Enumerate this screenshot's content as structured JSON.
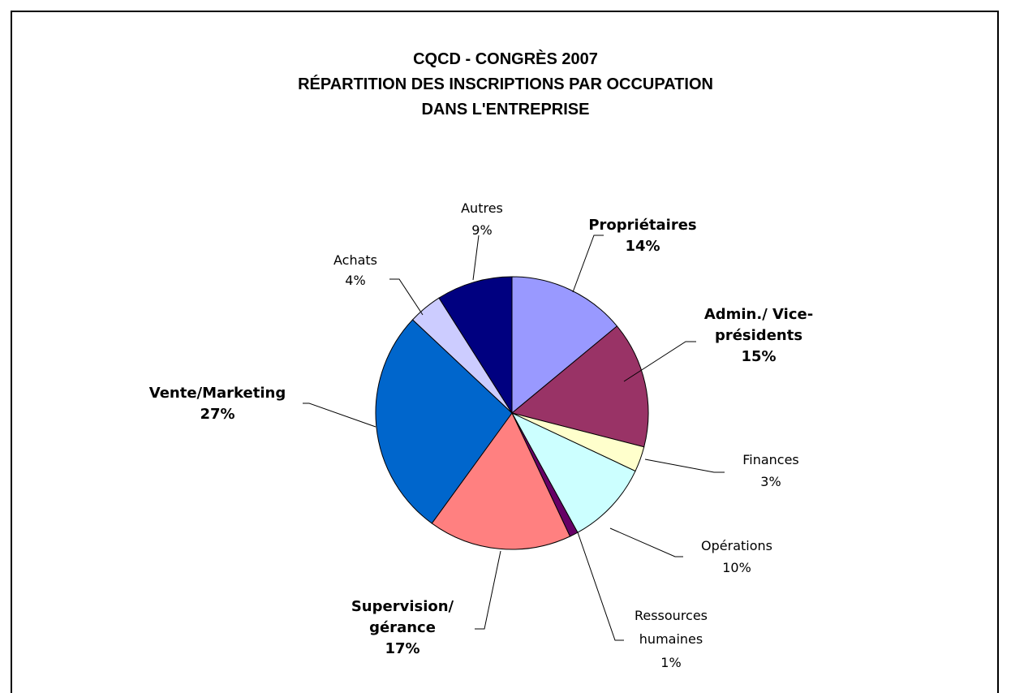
{
  "chart_data": {
    "type": "pie",
    "title_lines": [
      "CQCD - CONGRÈS 2007",
      "RÉPARTITION DES INSCRIPTIONS PAR OCCUPATION",
      "DANS L'ENTREPRISE"
    ],
    "start_angle_deg": 0,
    "direction": "clockwise",
    "slices": [
      {
        "name": "Propriétaires",
        "label_lines": [
          "Propriétaires",
          "14%"
        ],
        "value": 14,
        "color": "#9999ff",
        "bold": true
      },
      {
        "name": "Admin./ Vice-présidents",
        "label_lines": [
          "Admin./ Vice-",
          "présidents",
          "15%"
        ],
        "value": 15,
        "color": "#993366",
        "bold": true
      },
      {
        "name": "Finances",
        "label_lines": [
          "Finances",
          "3%"
        ],
        "value": 3,
        "color": "#ffffcc",
        "bold": false
      },
      {
        "name": "Opérations",
        "label_lines": [
          "Opérations",
          "10%"
        ],
        "value": 10,
        "color": "#ccffff",
        "bold": false
      },
      {
        "name": "Ressources humaines",
        "label_lines": [
          "Ressources",
          "humaines",
          "1%"
        ],
        "value": 1,
        "color": "#660066",
        "bold": false
      },
      {
        "name": "Supervision/ gérance",
        "label_lines": [
          "Supervision/",
          "gérance",
          "17%"
        ],
        "value": 17,
        "color": "#ff8080",
        "bold": true
      },
      {
        "name": "Vente/Marketing",
        "label_lines": [
          "Vente/Marketing",
          "27%"
        ],
        "value": 27,
        "color": "#0066cc",
        "bold": true
      },
      {
        "name": "Achats",
        "label_lines": [
          "Achats",
          "4%"
        ],
        "value": 4,
        "color": "#ccccff",
        "bold": false
      },
      {
        "name": "Autres",
        "label_lines": [
          "Autres",
          "9%"
        ],
        "value": 9,
        "color": "#000080",
        "bold": false
      }
    ]
  }
}
